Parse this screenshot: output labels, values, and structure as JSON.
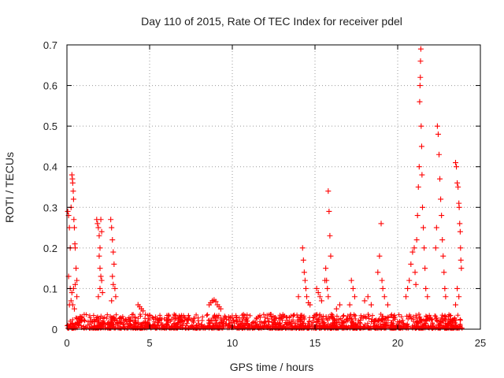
{
  "chart_data": {
    "type": "scatter",
    "title": "Day 110 of 2015, Rate Of TEC Index for receiver pdel",
    "xlabel": "GPS time / hours",
    "ylabel": "ROTI / TECUs",
    "xlim": [
      0,
      25
    ],
    "ylim": [
      0,
      0.7
    ],
    "x_ticks": [
      0,
      5,
      10,
      15,
      20,
      25
    ],
    "x_tick_labels": [
      "0",
      "5",
      "10",
      "15",
      "20",
      "25"
    ],
    "y_ticks": [
      0,
      0.1,
      0.2,
      0.3,
      0.4,
      0.5,
      0.6,
      0.7
    ],
    "y_tick_labels": [
      "0",
      "0.1",
      "0.2",
      "0.3",
      "0.4",
      "0.5",
      "0.6",
      "0.7"
    ],
    "grid": true,
    "marker": "+",
    "color": "#ff0000",
    "series": [
      {
        "points": [
          [
            0.05,
            0.29
          ],
          [
            0.1,
            0.28
          ],
          [
            0.15,
            0.25
          ],
          [
            0.2,
            0.2
          ],
          [
            0.25,
            0.3
          ],
          [
            0.3,
            0.38
          ],
          [
            0.33,
            0.37
          ],
          [
            0.35,
            0.36
          ],
          [
            0.38,
            0.34
          ],
          [
            0.4,
            0.32
          ],
          [
            0.42,
            0.27
          ],
          [
            0.45,
            0.25
          ],
          [
            0.48,
            0.21
          ],
          [
            0.5,
            0.2
          ],
          [
            0.55,
            0.15
          ],
          [
            0.6,
            0.12
          ],
          [
            0.1,
            0.13
          ],
          [
            0.2,
            0.1
          ],
          [
            0.3,
            0.09
          ],
          [
            0.4,
            0.1
          ],
          [
            0.5,
            0.11
          ],
          [
            0.6,
            0.08
          ],
          [
            0.15,
            0.06
          ],
          [
            0.25,
            0.07
          ],
          [
            0.35,
            0.06
          ],
          [
            0.45,
            0.05
          ],
          [
            1.8,
            0.27
          ],
          [
            1.85,
            0.26
          ],
          [
            1.9,
            0.25
          ],
          [
            1.95,
            0.23
          ],
          [
            2.0,
            0.2
          ],
          [
            2.05,
            0.27
          ],
          [
            2.1,
            0.24
          ],
          [
            1.95,
            0.18
          ],
          [
            2.0,
            0.15
          ],
          [
            2.05,
            0.13
          ],
          [
            2.1,
            0.12
          ],
          [
            2.15,
            0.09
          ],
          [
            2.0,
            0.1
          ],
          [
            1.9,
            0.08
          ],
          [
            2.65,
            0.27
          ],
          [
            2.7,
            0.25
          ],
          [
            2.75,
            0.22
          ],
          [
            2.8,
            0.19
          ],
          [
            2.85,
            0.16
          ],
          [
            2.75,
            0.13
          ],
          [
            2.8,
            0.11
          ],
          [
            2.9,
            0.1
          ],
          [
            2.95,
            0.08
          ],
          [
            2.7,
            0.07
          ],
          [
            4.3,
            0.06
          ],
          [
            4.4,
            0.055
          ],
          [
            4.5,
            0.05
          ],
          [
            4.6,
            0.045
          ],
          [
            8.6,
            0.06
          ],
          [
            8.7,
            0.065
          ],
          [
            8.8,
            0.07
          ],
          [
            8.9,
            0.072
          ],
          [
            9.0,
            0.068
          ],
          [
            9.1,
            0.06
          ],
          [
            9.2,
            0.055
          ],
          [
            9.3,
            0.05
          ],
          [
            14.25,
            0.2
          ],
          [
            14.3,
            0.17
          ],
          [
            14.35,
            0.14
          ],
          [
            14.4,
            0.12
          ],
          [
            14.45,
            0.1
          ],
          [
            14.5,
            0.08
          ],
          [
            14.6,
            0.065
          ],
          [
            14.7,
            0.06
          ],
          [
            14.0,
            0.08
          ],
          [
            15.1,
            0.1
          ],
          [
            15.2,
            0.09
          ],
          [
            15.3,
            0.08
          ],
          [
            15.4,
            0.07
          ],
          [
            15.6,
            0.12
          ],
          [
            15.65,
            0.15
          ],
          [
            15.7,
            0.12
          ],
          [
            15.8,
            0.34
          ],
          [
            15.85,
            0.29
          ],
          [
            15.9,
            0.23
          ],
          [
            15.95,
            0.18
          ],
          [
            15.75,
            0.1
          ],
          [
            15.8,
            0.08
          ],
          [
            16.3,
            0.05
          ],
          [
            16.5,
            0.06
          ],
          [
            17.2,
            0.12
          ],
          [
            17.3,
            0.1
          ],
          [
            17.4,
            0.08
          ],
          [
            17.1,
            0.06
          ],
          [
            18.0,
            0.07
          ],
          [
            18.2,
            0.08
          ],
          [
            18.4,
            0.06
          ],
          [
            18.8,
            0.14
          ],
          [
            18.9,
            0.18
          ],
          [
            19.0,
            0.26
          ],
          [
            19.05,
            0.12
          ],
          [
            19.1,
            0.1
          ],
          [
            19.2,
            0.08
          ],
          [
            19.4,
            0.06
          ],
          [
            20.5,
            0.08
          ],
          [
            20.6,
            0.1
          ],
          [
            20.7,
            0.12
          ],
          [
            20.8,
            0.16
          ],
          [
            20.9,
            0.19
          ],
          [
            21.0,
            0.2
          ],
          [
            21.05,
            0.14
          ],
          [
            21.1,
            0.11
          ],
          [
            21.15,
            0.22
          ],
          [
            21.2,
            0.28
          ],
          [
            21.25,
            0.35
          ],
          [
            21.3,
            0.4
          ],
          [
            21.33,
            0.56
          ],
          [
            21.35,
            0.6
          ],
          [
            21.37,
            0.62
          ],
          [
            21.38,
            0.66
          ],
          [
            21.4,
            0.69
          ],
          [
            21.42,
            0.5
          ],
          [
            21.45,
            0.45
          ],
          [
            21.47,
            0.38
          ],
          [
            21.5,
            0.3
          ],
          [
            21.55,
            0.25
          ],
          [
            21.6,
            0.2
          ],
          [
            21.65,
            0.15
          ],
          [
            21.7,
            0.1
          ],
          [
            21.8,
            0.08
          ],
          [
            22.4,
            0.5
          ],
          [
            22.45,
            0.48
          ],
          [
            22.5,
            0.43
          ],
          [
            22.55,
            0.37
          ],
          [
            22.6,
            0.32
          ],
          [
            22.65,
            0.28
          ],
          [
            22.7,
            0.22
          ],
          [
            22.75,
            0.18
          ],
          [
            22.8,
            0.14
          ],
          [
            22.85,
            0.1
          ],
          [
            22.9,
            0.08
          ],
          [
            22.35,
            0.25
          ],
          [
            22.3,
            0.2
          ],
          [
            23.5,
            0.41
          ],
          [
            23.55,
            0.4
          ],
          [
            23.6,
            0.36
          ],
          [
            23.65,
            0.35
          ],
          [
            23.7,
            0.31
          ],
          [
            23.72,
            0.3
          ],
          [
            23.75,
            0.26
          ],
          [
            23.78,
            0.24
          ],
          [
            23.8,
            0.2
          ],
          [
            23.82,
            0.17
          ],
          [
            23.85,
            0.15
          ],
          [
            23.6,
            0.1
          ],
          [
            23.7,
            0.08
          ],
          [
            23.5,
            0.06
          ]
        ]
      }
    ]
  }
}
